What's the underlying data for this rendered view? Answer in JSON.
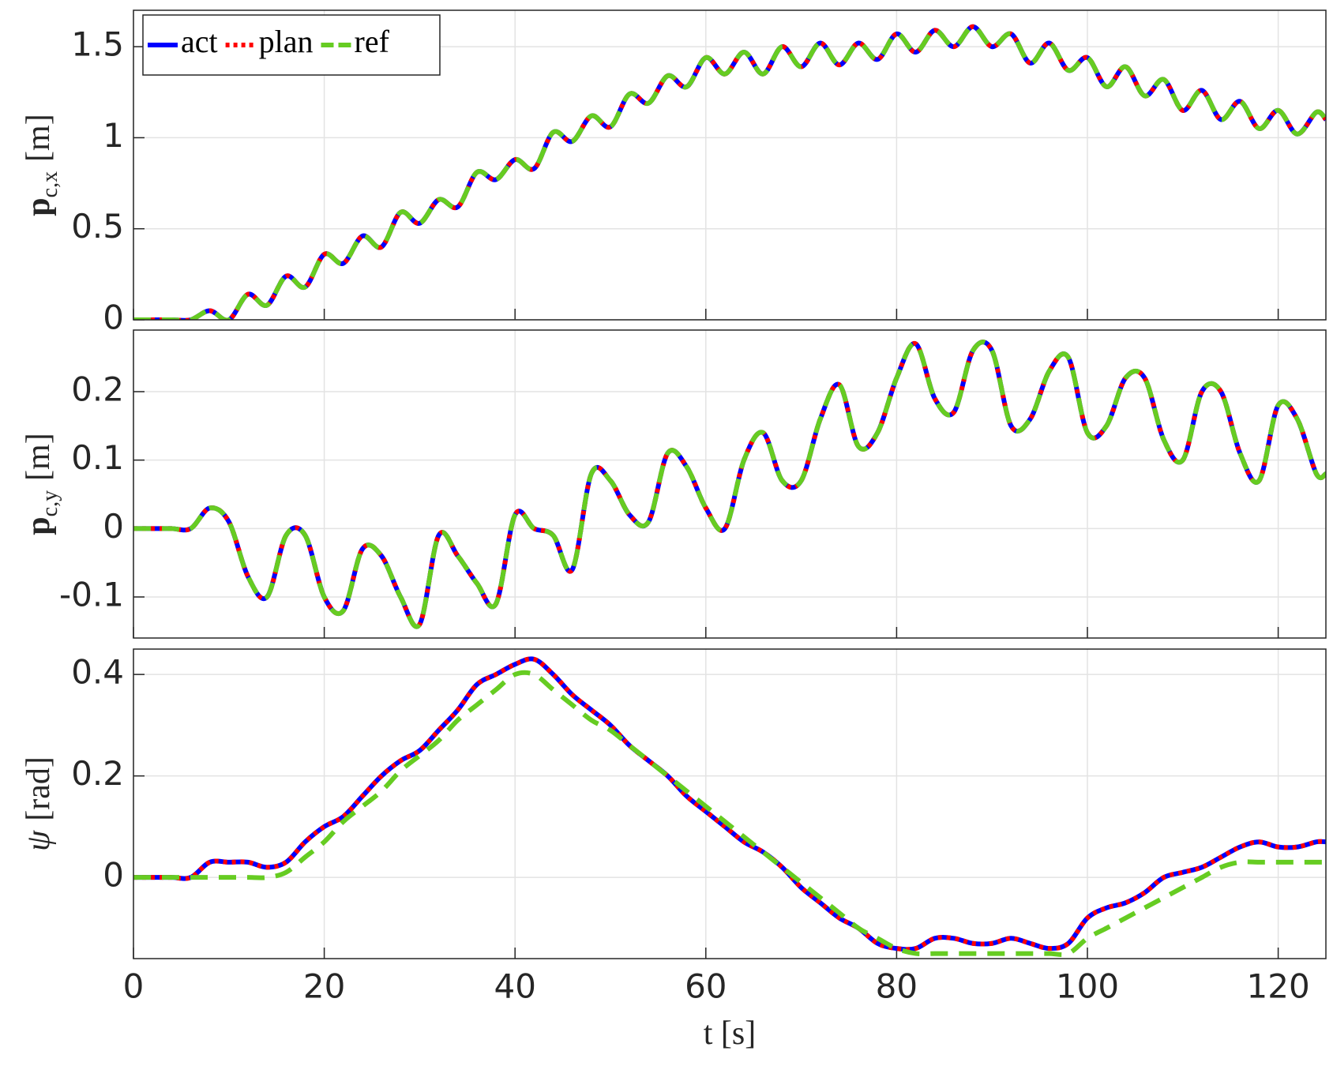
{
  "chart_data": [
    {
      "type": "line",
      "ylabel": {
        "main": "p",
        "sub": "c,x",
        "unit": "[m]"
      },
      "legend": "upper left",
      "grid": true,
      "xlim": [
        0,
        125
      ],
      "xticks": [
        0,
        20,
        40,
        60,
        80,
        100,
        120
      ],
      "ylim": [
        0,
        1.7
      ],
      "yticks": [
        0,
        0.5,
        1,
        1.5
      ],
      "x": [
        0,
        2,
        4,
        6,
        8,
        10,
        12,
        14,
        16,
        18,
        20,
        22,
        24,
        26,
        28,
        30,
        32,
        34,
        36,
        38,
        40,
        42,
        44,
        46,
        48,
        50,
        52,
        54,
        56,
        58,
        60,
        62,
        64,
        66,
        68,
        70,
        72,
        74,
        76,
        78,
        80,
        82,
        84,
        86,
        88,
        90,
        92,
        94,
        96,
        98,
        100,
        102,
        104,
        106,
        108,
        110,
        112,
        114,
        116,
        118,
        120,
        122,
        124,
        125
      ],
      "series": [
        {
          "name": "act",
          "color": "#0000ff",
          "style": "solid",
          "values": [
            0,
            0,
            0,
            0,
            0.05,
            0,
            0.14,
            0.08,
            0.24,
            0.18,
            0.36,
            0.31,
            0.46,
            0.4,
            0.59,
            0.53,
            0.66,
            0.62,
            0.81,
            0.77,
            0.88,
            0.83,
            1.03,
            0.98,
            1.12,
            1.06,
            1.24,
            1.19,
            1.34,
            1.28,
            1.44,
            1.35,
            1.47,
            1.35,
            1.5,
            1.39,
            1.52,
            1.4,
            1.52,
            1.43,
            1.57,
            1.47,
            1.59,
            1.5,
            1.61,
            1.5,
            1.57,
            1.41,
            1.52,
            1.37,
            1.44,
            1.28,
            1.39,
            1.23,
            1.32,
            1.15,
            1.26,
            1.1,
            1.2,
            1.05,
            1.15,
            1.02,
            1.14,
            1.1
          ]
        },
        {
          "name": "plan",
          "color": "#ff0000",
          "style": "dotted",
          "values": [
            0,
            0,
            0,
            0,
            0.05,
            0,
            0.14,
            0.08,
            0.24,
            0.18,
            0.36,
            0.31,
            0.46,
            0.4,
            0.59,
            0.53,
            0.66,
            0.62,
            0.81,
            0.77,
            0.88,
            0.83,
            1.03,
            0.98,
            1.12,
            1.06,
            1.24,
            1.19,
            1.34,
            1.28,
            1.44,
            1.35,
            1.47,
            1.35,
            1.5,
            1.39,
            1.52,
            1.4,
            1.52,
            1.43,
            1.57,
            1.47,
            1.59,
            1.5,
            1.61,
            1.5,
            1.57,
            1.41,
            1.52,
            1.37,
            1.44,
            1.28,
            1.39,
            1.23,
            1.32,
            1.15,
            1.26,
            1.1,
            1.2,
            1.05,
            1.15,
            1.02,
            1.14,
            1.1
          ]
        },
        {
          "name": "ref",
          "color": "#66cc22",
          "style": "dashed",
          "values": [
            0,
            0,
            0,
            0,
            0.05,
            0,
            0.14,
            0.08,
            0.24,
            0.18,
            0.36,
            0.31,
            0.46,
            0.4,
            0.59,
            0.53,
            0.66,
            0.62,
            0.81,
            0.77,
            0.88,
            0.83,
            1.03,
            0.98,
            1.12,
            1.06,
            1.24,
            1.19,
            1.34,
            1.28,
            1.44,
            1.35,
            1.47,
            1.35,
            1.5,
            1.39,
            1.52,
            1.4,
            1.52,
            1.43,
            1.57,
            1.47,
            1.59,
            1.5,
            1.61,
            1.5,
            1.57,
            1.41,
            1.52,
            1.37,
            1.44,
            1.28,
            1.39,
            1.23,
            1.32,
            1.15,
            1.26,
            1.1,
            1.2,
            1.05,
            1.15,
            1.02,
            1.14,
            1.1
          ]
        }
      ]
    },
    {
      "type": "line",
      "ylabel": {
        "main": "p",
        "sub": "c,y",
        "unit": "[m]"
      },
      "grid": true,
      "xlim": [
        0,
        125
      ],
      "xticks": [
        0,
        20,
        40,
        60,
        80,
        100,
        120
      ],
      "ylim": [
        -0.16,
        0.29
      ],
      "yticks": [
        -0.1,
        0,
        0.1,
        0.2
      ],
      "x": [
        0,
        2,
        4,
        6,
        8,
        10,
        12,
        14,
        16,
        18,
        20,
        22,
        24,
        26,
        28,
        30,
        32,
        34,
        36,
        38,
        40,
        42,
        44,
        46,
        48,
        50,
        52,
        54,
        56,
        58,
        60,
        62,
        64,
        66,
        68,
        70,
        72,
        74,
        76,
        78,
        80,
        82,
        84,
        86,
        88,
        90,
        92,
        94,
        96,
        98,
        100,
        102,
        104,
        106,
        108,
        110,
        112,
        114,
        116,
        118,
        120,
        122,
        124,
        125
      ],
      "series": [
        {
          "name": "act",
          "color": "#0000ff",
          "style": "solid",
          "values": [
            0,
            0,
            0,
            0,
            0.03,
            0.01,
            -0.07,
            -0.1,
            -0.01,
            -0.01,
            -0.1,
            -0.12,
            -0.03,
            -0.04,
            -0.1,
            -0.14,
            -0.01,
            -0.04,
            -0.08,
            -0.11,
            0.02,
            0,
            -0.01,
            -0.06,
            0.08,
            0.07,
            0.02,
            0.01,
            0.11,
            0.09,
            0.03,
            0,
            0.1,
            0.14,
            0.07,
            0.07,
            0.16,
            0.21,
            0.12,
            0.14,
            0.22,
            0.27,
            0.19,
            0.17,
            0.26,
            0.26,
            0.15,
            0.16,
            0.23,
            0.25,
            0.14,
            0.15,
            0.22,
            0.22,
            0.13,
            0.1,
            0.2,
            0.2,
            0.11,
            0.07,
            0.18,
            0.16,
            0.08,
            0.08
          ]
        },
        {
          "name": "plan",
          "color": "#ff0000",
          "style": "dotted",
          "values": [
            0,
            0,
            0,
            0,
            0.03,
            0.01,
            -0.07,
            -0.1,
            -0.01,
            -0.01,
            -0.1,
            -0.12,
            -0.03,
            -0.04,
            -0.1,
            -0.14,
            -0.01,
            -0.04,
            -0.08,
            -0.11,
            0.02,
            0,
            -0.01,
            -0.06,
            0.08,
            0.07,
            0.02,
            0.01,
            0.11,
            0.09,
            0.03,
            0,
            0.1,
            0.14,
            0.07,
            0.07,
            0.16,
            0.21,
            0.12,
            0.14,
            0.22,
            0.27,
            0.19,
            0.17,
            0.26,
            0.26,
            0.15,
            0.16,
            0.23,
            0.25,
            0.14,
            0.15,
            0.22,
            0.22,
            0.13,
            0.1,
            0.2,
            0.2,
            0.11,
            0.07,
            0.18,
            0.16,
            0.08,
            0.08
          ]
        },
        {
          "name": "ref",
          "color": "#66cc22",
          "style": "dashed",
          "values": [
            0,
            0,
            0,
            0,
            0.03,
            0.01,
            -0.07,
            -0.1,
            -0.01,
            -0.01,
            -0.1,
            -0.12,
            -0.03,
            -0.04,
            -0.1,
            -0.14,
            -0.01,
            -0.04,
            -0.08,
            -0.11,
            0.02,
            0,
            -0.01,
            -0.06,
            0.08,
            0.07,
            0.02,
            0.01,
            0.11,
            0.09,
            0.03,
            0,
            0.1,
            0.14,
            0.07,
            0.07,
            0.16,
            0.21,
            0.12,
            0.14,
            0.22,
            0.27,
            0.19,
            0.17,
            0.26,
            0.26,
            0.15,
            0.16,
            0.23,
            0.25,
            0.14,
            0.15,
            0.22,
            0.22,
            0.13,
            0.1,
            0.2,
            0.2,
            0.11,
            0.07,
            0.18,
            0.16,
            0.08,
            0.08
          ]
        }
      ]
    },
    {
      "type": "line",
      "ylabel": {
        "main": "ψ",
        "unit": "[rad]"
      },
      "xlabel": "t [s]",
      "grid": true,
      "xlim": [
        0,
        125
      ],
      "xticks": [
        0,
        20,
        40,
        60,
        80,
        100,
        120
      ],
      "ylim": [
        -0.16,
        0.45
      ],
      "yticks": [
        0,
        0.2,
        0.4
      ],
      "x": [
        0,
        2,
        4,
        6,
        8,
        10,
        12,
        14,
        16,
        18,
        20,
        22,
        24,
        26,
        28,
        30,
        32,
        34,
        36,
        38,
        40,
        42,
        44,
        46,
        48,
        50,
        52,
        54,
        56,
        58,
        60,
        62,
        64,
        66,
        68,
        70,
        72,
        74,
        76,
        78,
        80,
        82,
        84,
        86,
        88,
        90,
        92,
        94,
        96,
        98,
        100,
        102,
        104,
        106,
        108,
        110,
        112,
        114,
        116,
        118,
        120,
        122,
        124,
        125
      ],
      "series": [
        {
          "name": "act",
          "color": "#0000ff",
          "style": "solid",
          "values": [
            0,
            0,
            0,
            0,
            0.03,
            0.03,
            0.03,
            0.02,
            0.03,
            0.07,
            0.1,
            0.12,
            0.16,
            0.2,
            0.23,
            0.25,
            0.29,
            0.33,
            0.38,
            0.4,
            0.42,
            0.43,
            0.4,
            0.36,
            0.33,
            0.3,
            0.26,
            0.23,
            0.2,
            0.16,
            0.13,
            0.1,
            0.07,
            0.05,
            0.02,
            -0.02,
            -0.05,
            -0.08,
            -0.1,
            -0.13,
            -0.14,
            -0.14,
            -0.12,
            -0.12,
            -0.13,
            -0.13,
            -0.12,
            -0.13,
            -0.14,
            -0.13,
            -0.08,
            -0.06,
            -0.05,
            -0.03,
            0,
            0.01,
            0.02,
            0.04,
            0.06,
            0.07,
            0.06,
            0.06,
            0.07,
            0.07
          ]
        },
        {
          "name": "plan",
          "color": "#ff0000",
          "style": "dotted",
          "values": [
            0,
            0,
            0,
            0,
            0.03,
            0.03,
            0.03,
            0.02,
            0.03,
            0.07,
            0.1,
            0.12,
            0.16,
            0.2,
            0.23,
            0.25,
            0.29,
            0.33,
            0.38,
            0.4,
            0.42,
            0.43,
            0.4,
            0.36,
            0.33,
            0.3,
            0.26,
            0.23,
            0.2,
            0.16,
            0.13,
            0.1,
            0.07,
            0.05,
            0.02,
            -0.02,
            -0.05,
            -0.08,
            -0.1,
            -0.13,
            -0.14,
            -0.14,
            -0.12,
            -0.12,
            -0.13,
            -0.13,
            -0.12,
            -0.13,
            -0.14,
            -0.13,
            -0.08,
            -0.06,
            -0.05,
            -0.03,
            0,
            0.01,
            0.02,
            0.04,
            0.06,
            0.07,
            0.06,
            0.06,
            0.07,
            0.07
          ]
        },
        {
          "name": "ref",
          "color": "#66cc22",
          "style": "dashed",
          "values": [
            0,
            0,
            0,
            0,
            0,
            0,
            0,
            0,
            0.01,
            0.04,
            0.07,
            0.11,
            0.14,
            0.17,
            0.21,
            0.24,
            0.27,
            0.31,
            0.34,
            0.37,
            0.4,
            0.4,
            0.37,
            0.34,
            0.31,
            0.29,
            0.26,
            0.23,
            0.2,
            0.17,
            0.14,
            0.11,
            0.08,
            0.05,
            0.02,
            -0.01,
            -0.04,
            -0.07,
            -0.1,
            -0.12,
            -0.14,
            -0.15,
            -0.15,
            -0.15,
            -0.15,
            -0.15,
            -0.15,
            -0.15,
            -0.15,
            -0.15,
            -0.12,
            -0.1,
            -0.08,
            -0.06,
            -0.04,
            -0.02,
            0,
            0.02,
            0.03,
            0.03,
            0.03,
            0.03,
            0.03,
            0.03
          ]
        }
      ]
    }
  ]
}
